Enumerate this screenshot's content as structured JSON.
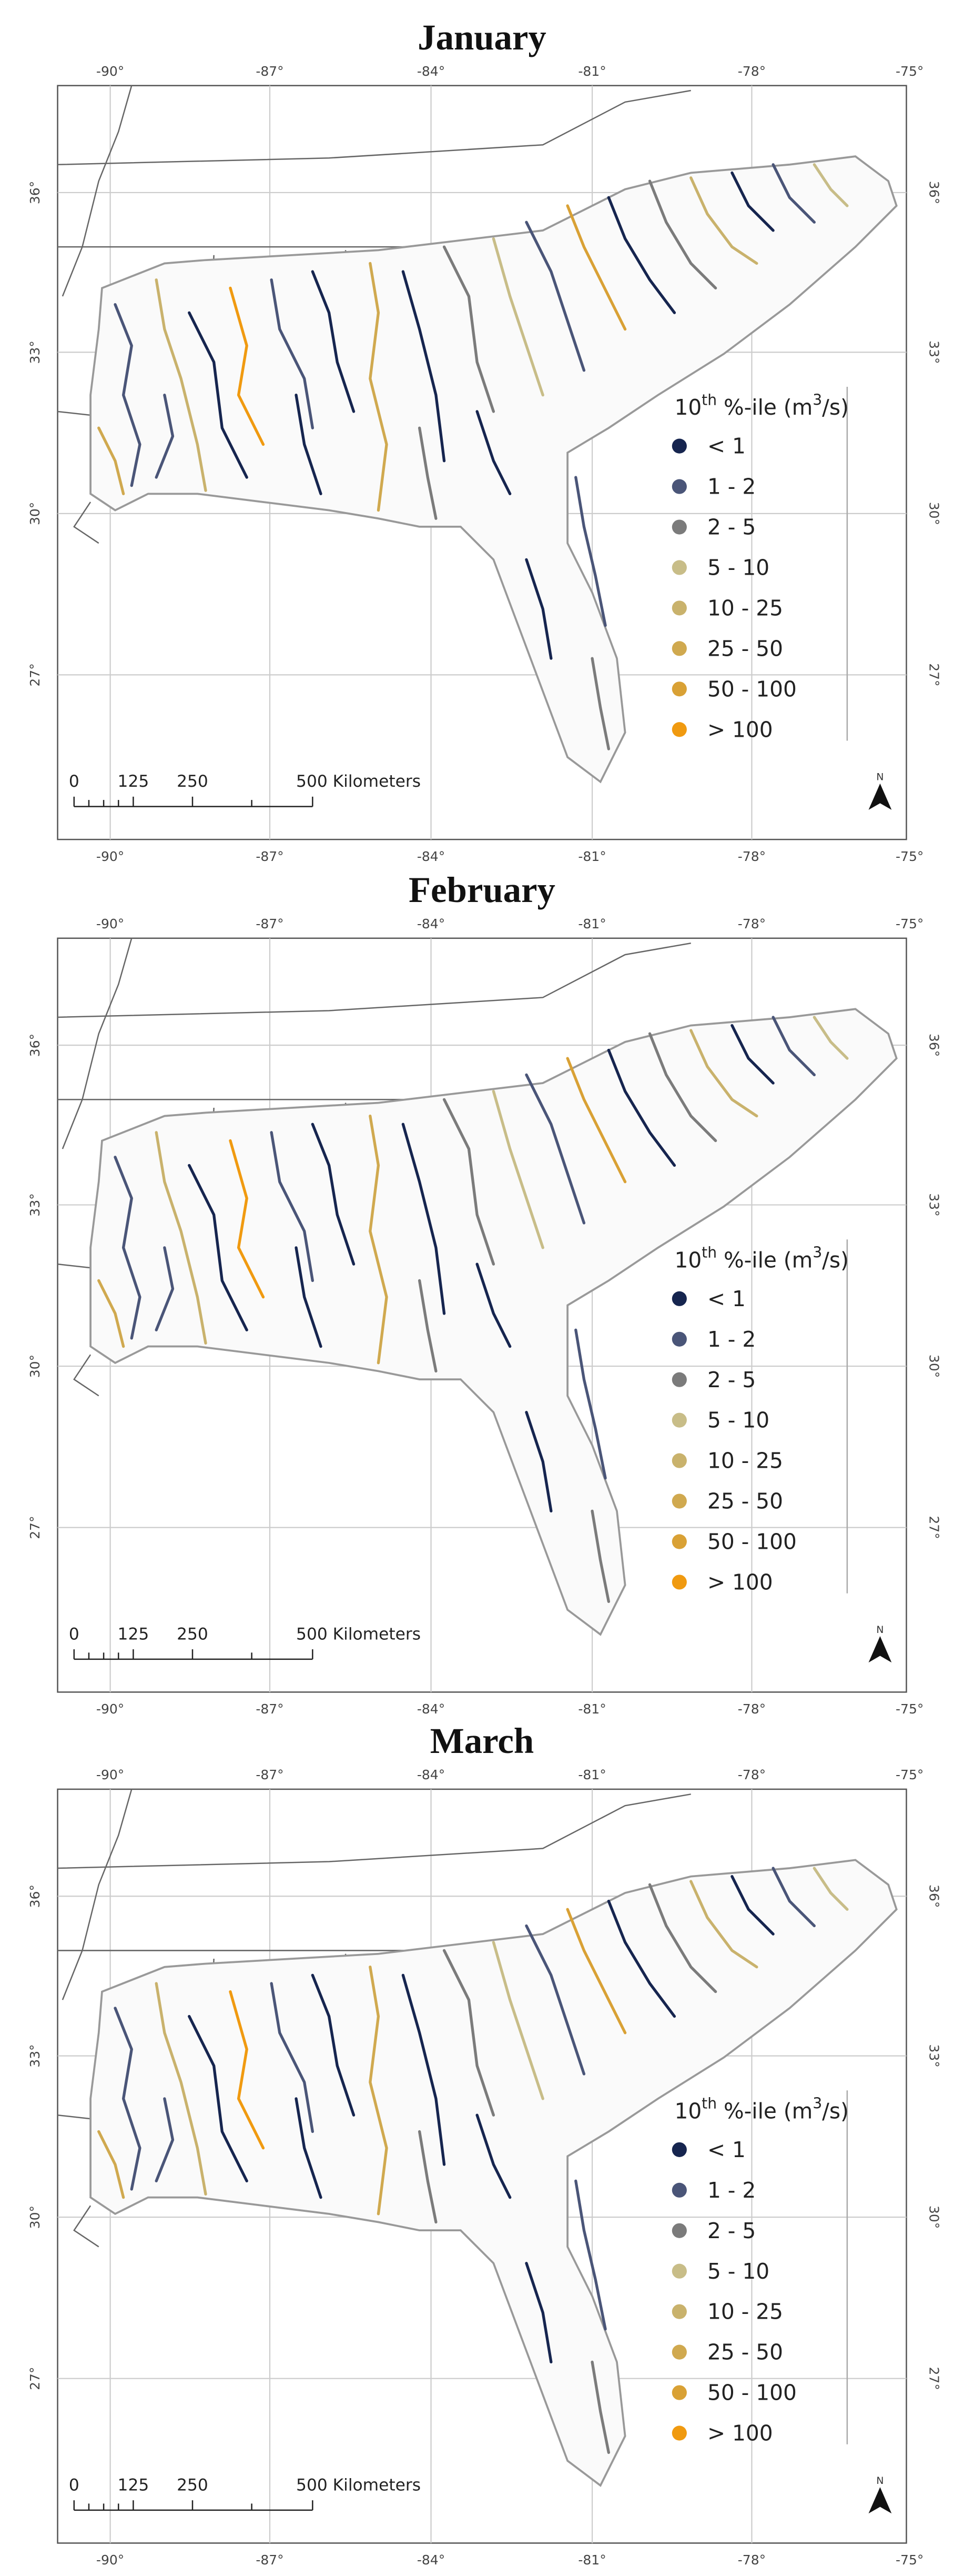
{
  "panels": [
    {
      "title": "January"
    },
    {
      "title": "February"
    },
    {
      "title": "March"
    }
  ],
  "map": {
    "longitude_labels": [
      "-90°",
      "-87°",
      "-84°",
      "-81°",
      "-78°",
      "-75°"
    ],
    "latitude_labels": [
      "36°",
      "33°",
      "30°",
      "27°"
    ],
    "legend": {
      "title_parts": {
        "base": "10",
        "sup1": "th",
        "middle": " %-ile (m",
        "sup2": "3",
        "end": "/s)"
      },
      "items": [
        {
          "label": "< 1",
          "color": "#16254f"
        },
        {
          "label": "1 - 2",
          "color": "#4a5578"
        },
        {
          "label": "2 - 5",
          "color": "#7b7b7b"
        },
        {
          "label": "5 - 10",
          "color": "#c8bd88"
        },
        {
          "label": "10 - 25",
          "color": "#c9b26c"
        },
        {
          "label": "25 - 50",
          "color": "#d0a94f"
        },
        {
          "label": "50 - 100",
          "color": "#d9a135"
        },
        {
          "label": "> 100",
          "color": "#f09a10"
        }
      ]
    },
    "scale_bar": {
      "labels": [
        "0",
        "125",
        "250",
        "500 Kilometers"
      ]
    },
    "north_label": "N"
  }
}
